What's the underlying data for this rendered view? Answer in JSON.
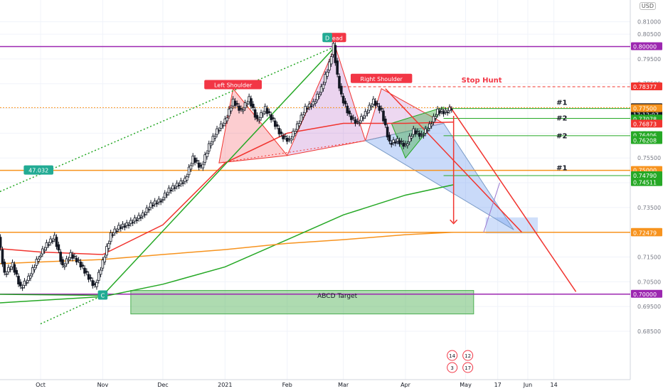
{
  "currency_label": "USD",
  "chart_data": {
    "type": "candlestick",
    "title": "",
    "ylim": [
      0.6835,
      0.812
    ],
    "grid": true,
    "y_ticks": [
      "0.81000",
      "0.80500",
      "0.79500",
      "0.78500",
      "0.77500",
      "0.76500",
      "0.75500",
      "0.74500",
      "0.73500",
      "0.72500",
      "0.71500",
      "0.70500",
      "0.69500",
      "0.68500"
    ],
    "x_ticks": [
      {
        "label": "Oct",
        "x": "2020-10-01"
      },
      {
        "label": "Nov",
        "x": "2020-11-01"
      },
      {
        "label": "Dec",
        "x": "2020-12-01"
      },
      {
        "label": "2021",
        "x": "2021-01-01"
      },
      {
        "label": "Feb",
        "x": "2021-02-01"
      },
      {
        "label": "Mar",
        "x": "2021-03-01"
      },
      {
        "label": "Apr",
        "x": "2021-04-01"
      },
      {
        "label": "May",
        "x": "2021-05-01"
      },
      {
        "label": "17",
        "x": "2021-05-17"
      },
      {
        "label": "Jun",
        "x": "2021-06-01"
      },
      {
        "label": "14",
        "x": "2021-06-14"
      }
    ],
    "price_path": [
      [
        "2020-09-01",
        0.7395
      ],
      [
        "2020-09-06",
        0.736
      ],
      [
        "2020-09-10",
        0.728
      ],
      [
        "2020-09-14",
        0.708
      ],
      [
        "2020-09-18",
        0.712
      ],
      [
        "2020-09-22",
        0.7025
      ],
      [
        "2020-09-26",
        0.7065
      ],
      [
        "2020-10-01",
        0.715
      ],
      [
        "2020-10-05",
        0.72
      ],
      [
        "2020-10-09",
        0.723
      ],
      [
        "2020-10-13",
        0.711
      ],
      [
        "2020-10-17",
        0.716
      ],
      [
        "2020-10-21",
        0.713
      ],
      [
        "2020-10-25",
        0.708
      ],
      [
        "2020-10-29",
        0.703
      ],
      [
        "2020-11-02",
        0.713
      ],
      [
        "2020-11-06",
        0.724
      ],
      [
        "2020-11-10",
        0.727
      ],
      [
        "2020-11-14",
        0.728
      ],
      [
        "2020-11-18",
        0.73
      ],
      [
        "2020-11-22",
        0.732
      ],
      [
        "2020-11-26",
        0.736
      ],
      [
        "2020-12-01",
        0.738
      ],
      [
        "2020-12-05",
        0.742
      ],
      [
        "2020-12-09",
        0.744
      ],
      [
        "2020-12-13",
        0.746
      ],
      [
        "2020-12-17",
        0.755
      ],
      [
        "2020-12-21",
        0.751
      ],
      [
        "2020-12-25",
        0.76
      ],
      [
        "2020-12-29",
        0.766
      ],
      [
        "2021-01-02",
        0.77
      ],
      [
        "2021-01-06",
        0.778
      ],
      [
        "2021-01-10",
        0.774
      ],
      [
        "2021-01-14",
        0.779
      ],
      [
        "2021-01-18",
        0.77
      ],
      [
        "2021-01-22",
        0.775
      ],
      [
        "2021-01-26",
        0.77
      ],
      [
        "2021-01-30",
        0.764
      ],
      [
        "2021-02-03",
        0.762
      ],
      [
        "2021-02-07",
        0.768
      ],
      [
        "2021-02-11",
        0.775
      ],
      [
        "2021-02-15",
        0.777
      ],
      [
        "2021-02-19",
        0.783
      ],
      [
        "2021-02-23",
        0.793
      ],
      [
        "2021-02-25",
        0.8005
      ],
      [
        "2021-02-27",
        0.788
      ],
      [
        "2021-03-01",
        0.78
      ],
      [
        "2021-03-05",
        0.772
      ],
      [
        "2021-03-09",
        0.769
      ],
      [
        "2021-03-13",
        0.773
      ],
      [
        "2021-03-17",
        0.778
      ],
      [
        "2021-03-21",
        0.774
      ],
      [
        "2021-03-25",
        0.761
      ],
      [
        "2021-03-29",
        0.762
      ],
      [
        "2021-04-02",
        0.76
      ],
      [
        "2021-04-06",
        0.766
      ],
      [
        "2021-04-10",
        0.764
      ],
      [
        "2021-04-14",
        0.768
      ],
      [
        "2021-04-18",
        0.774
      ],
      [
        "2021-04-22",
        0.7735
      ],
      [
        "2021-04-25",
        0.7753
      ]
    ],
    "series": [
      {
        "name": "",
        "color": "#f1342f",
        "points": [
          [
            "2020-09-01",
            0.719
          ],
          [
            "2020-10-01",
            0.717
          ],
          [
            "2020-11-01",
            0.716
          ],
          [
            "2020-12-01",
            0.728
          ],
          [
            "2021-01-01",
            0.753
          ],
          [
            "2021-02-01",
            0.765
          ],
          [
            "2021-03-01",
            0.769
          ],
          [
            "2021-04-01",
            0.769
          ],
          [
            "2021-04-25",
            0.7695
          ]
        ]
      },
      {
        "name": "",
        "color": "#25a825",
        "points": [
          [
            "2020-09-01",
            0.696
          ],
          [
            "2020-10-01",
            0.6975
          ],
          [
            "2020-11-01",
            0.699
          ],
          [
            "2020-12-01",
            0.704
          ],
          [
            "2021-01-01",
            0.711
          ],
          [
            "2021-02-01",
            0.722
          ],
          [
            "2021-03-01",
            0.732
          ],
          [
            "2021-04-01",
            0.74
          ],
          [
            "2021-04-25",
            0.7442
          ]
        ]
      },
      {
        "name": "",
        "color": "#f7931e",
        "points": [
          [
            "2020-09-01",
            0.712
          ],
          [
            "2020-10-01",
            0.713
          ],
          [
            "2020-11-01",
            0.714
          ],
          [
            "2020-12-01",
            0.716
          ],
          [
            "2021-01-01",
            0.718
          ],
          [
            "2021-02-01",
            0.7205
          ],
          [
            "2021-03-01",
            0.722
          ],
          [
            "2021-04-01",
            0.724
          ],
          [
            "2021-04-25",
            0.725
          ]
        ]
      }
    ],
    "horizontal_lines": [
      {
        "y": 0.8,
        "color": "#9c27b0",
        "style": "solid",
        "label": "0.80000"
      },
      {
        "y": 0.78377,
        "color": "#f1342f",
        "style": "dashed",
        "label": "0.78377"
      },
      {
        "y": 0.77533,
        "color": "#f7931e",
        "style": "dotted",
        "label": "0.77533"
      },
      {
        "y": 0.75,
        "color": "#f7931e",
        "style": "solid",
        "label": "0.75000"
      },
      {
        "y": 0.725,
        "color": "#f7931e",
        "style": "solid",
        "label": "0.72500"
      },
      {
        "y": 0.7,
        "color": "#9c27b0",
        "style": "solid",
        "label": "0.70000"
      }
    ],
    "price_labels": [
      {
        "text": "0.77533",
        "bg": "#131722",
        "fg": "#ffffff",
        "y": 0.77533
      },
      {
        "text": "17:12:07",
        "bg": "#131722",
        "fg": "#ffffff",
        "y": 0.77533,
        "sub": true
      },
      {
        "text": "0.77500",
        "bg": "#f7931e",
        "fg": "#ffffff",
        "y": 0.775
      },
      {
        "text": "0.77078",
        "bg": "#25a825",
        "fg": "#ffffff",
        "y": 0.77078
      },
      {
        "text": "0.76873",
        "bg": "#f1342f",
        "fg": "#ffffff",
        "y": 0.76873
      },
      {
        "text": "0.76406",
        "bg": "#25a825",
        "fg": "#ffffff",
        "y": 0.76406
      },
      {
        "text": "0.76208",
        "bg": "#25a825",
        "fg": "#ffffff",
        "y": 0.76208
      },
      {
        "text": "0.75000",
        "bg": "#f7931e",
        "fg": "#ffffff",
        "y": 0.75
      },
      {
        "text": "0.74790",
        "bg": "#25a825",
        "fg": "#ffffff",
        "y": 0.7479
      },
      {
        "text": "0.74511",
        "bg": "#25a825",
        "fg": "#ffffff",
        "y": 0.74511
      },
      {
        "text": "0.72500",
        "bg": "#f7931e",
        "fg": "#ffffff",
        "y": 0.725
      },
      {
        "text": "0.72479",
        "bg": "#f7931e",
        "fg": "#ffffff",
        "y": 0.72479
      },
      {
        "text": "0.70000",
        "bg": "#9c27b0",
        "fg": "#ffffff",
        "y": 0.7
      },
      {
        "text": "0.80000",
        "bg": "#9c27b0",
        "fg": "#ffffff",
        "y": 0.8
      },
      {
        "text": "0.78377",
        "bg": "#f1342f",
        "fg": "#ffffff",
        "y": 0.78377
      }
    ],
    "annotations": [
      {
        "text": "Left Shoulder",
        "kind": "red-tag",
        "x": "2021-01-05",
        "y": 0.7845
      },
      {
        "text": "Head",
        "kind": "red-tag",
        "x": "2021-02-25",
        "y": 0.8035
      },
      {
        "text": "D",
        "kind": "green-tag",
        "x": "2021-02-21",
        "y": 0.8035
      },
      {
        "text": "Right Shoulder",
        "kind": "red-tag",
        "x": "2021-03-20",
        "y": 0.787
      },
      {
        "text": "C",
        "kind": "green-tag",
        "x": "2020-11-01",
        "y": 0.6995
      },
      {
        "text": "Stop Hunt",
        "kind": "red-text",
        "x": "2021-05-09",
        "y": 0.7855
      },
      {
        "text": "47.032",
        "kind": "green-tag",
        "x": "2020-09-30",
        "y": 0.75
      },
      {
        "text": "ABCD Target",
        "kind": "box-text",
        "x": "2021-02-26",
        "y": 0.6985
      },
      {
        "text": "#1",
        "kind": "side-text",
        "x": "2021-06-18",
        "y": 0.7765
      },
      {
        "text": "#2",
        "kind": "side-text",
        "x": "2021-06-18",
        "y": 0.7702
      },
      {
        "text": "#2",
        "kind": "side-text",
        "x": "2021-06-18",
        "y": 0.763
      },
      {
        "text": "#1",
        "kind": "side-text",
        "x": "2021-06-18",
        "y": 0.75
      }
    ],
    "event_markers": [
      "14",
      "12",
      "3",
      "17"
    ]
  }
}
